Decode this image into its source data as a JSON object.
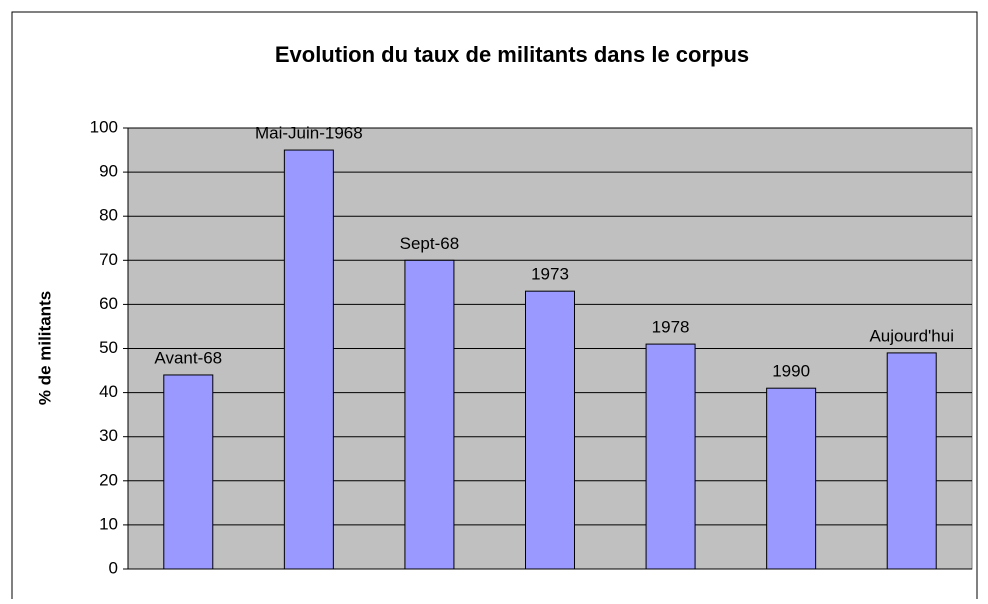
{
  "chart_data": {
    "type": "bar",
    "title": "Evolution du taux de militants dans le corpus",
    "y_label": "% de militants",
    "categories": [
      "Avant-68",
      "Mai-Juin-1968",
      "Sept-68",
      "1973",
      "1978",
      "1990",
      "Aujourd'hui"
    ],
    "values": [
      44,
      95,
      70,
      63,
      51,
      41,
      49
    ],
    "color": "#9999ff",
    "ylim": [
      0,
      100
    ],
    "yticks": [
      0,
      10,
      20,
      30,
      40,
      50,
      60,
      70,
      80,
      90,
      100
    ],
    "grid": true
  }
}
